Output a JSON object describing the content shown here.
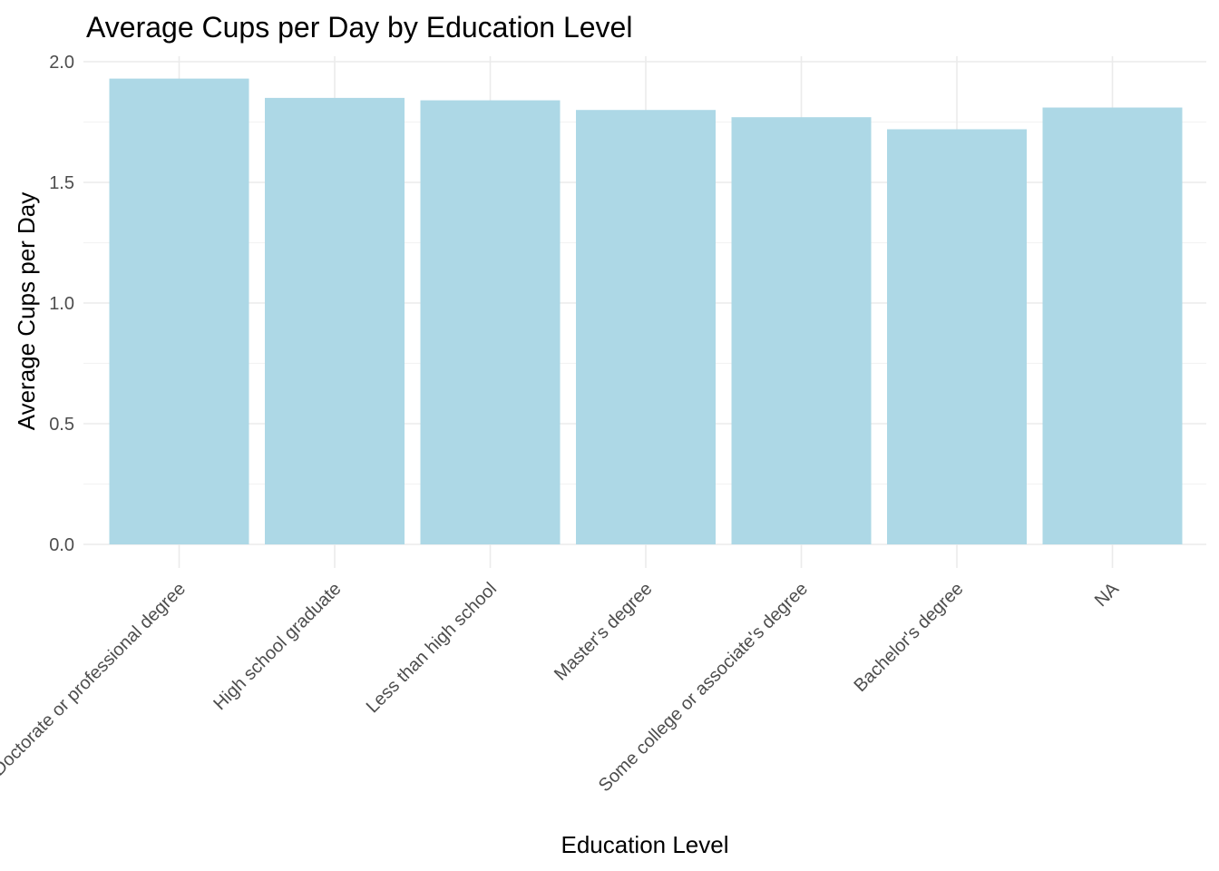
{
  "chart_data": {
    "type": "bar",
    "title": "Average Cups per Day by Education Level",
    "xlabel": "Education Level",
    "ylabel": "Average Cups per Day",
    "categories": [
      "Doctorate or professional degree",
      "High school graduate",
      "Less than high school",
      "Master's degree",
      "Some college or associate's degree",
      "Bachelor's degree",
      "NA"
    ],
    "values": [
      1.93,
      1.85,
      1.84,
      1.8,
      1.77,
      1.72,
      1.81
    ],
    "ylim": [
      0,
      2.0
    ],
    "yticks": [
      0.0,
      0.5,
      1.0,
      1.5,
      2.0
    ],
    "ytick_labels": [
      "0.0",
      "0.5",
      "1.0",
      "1.5",
      "2.0"
    ],
    "grid": true,
    "x_tick_rotation_deg": 45,
    "bar_color": "#add8e6"
  }
}
